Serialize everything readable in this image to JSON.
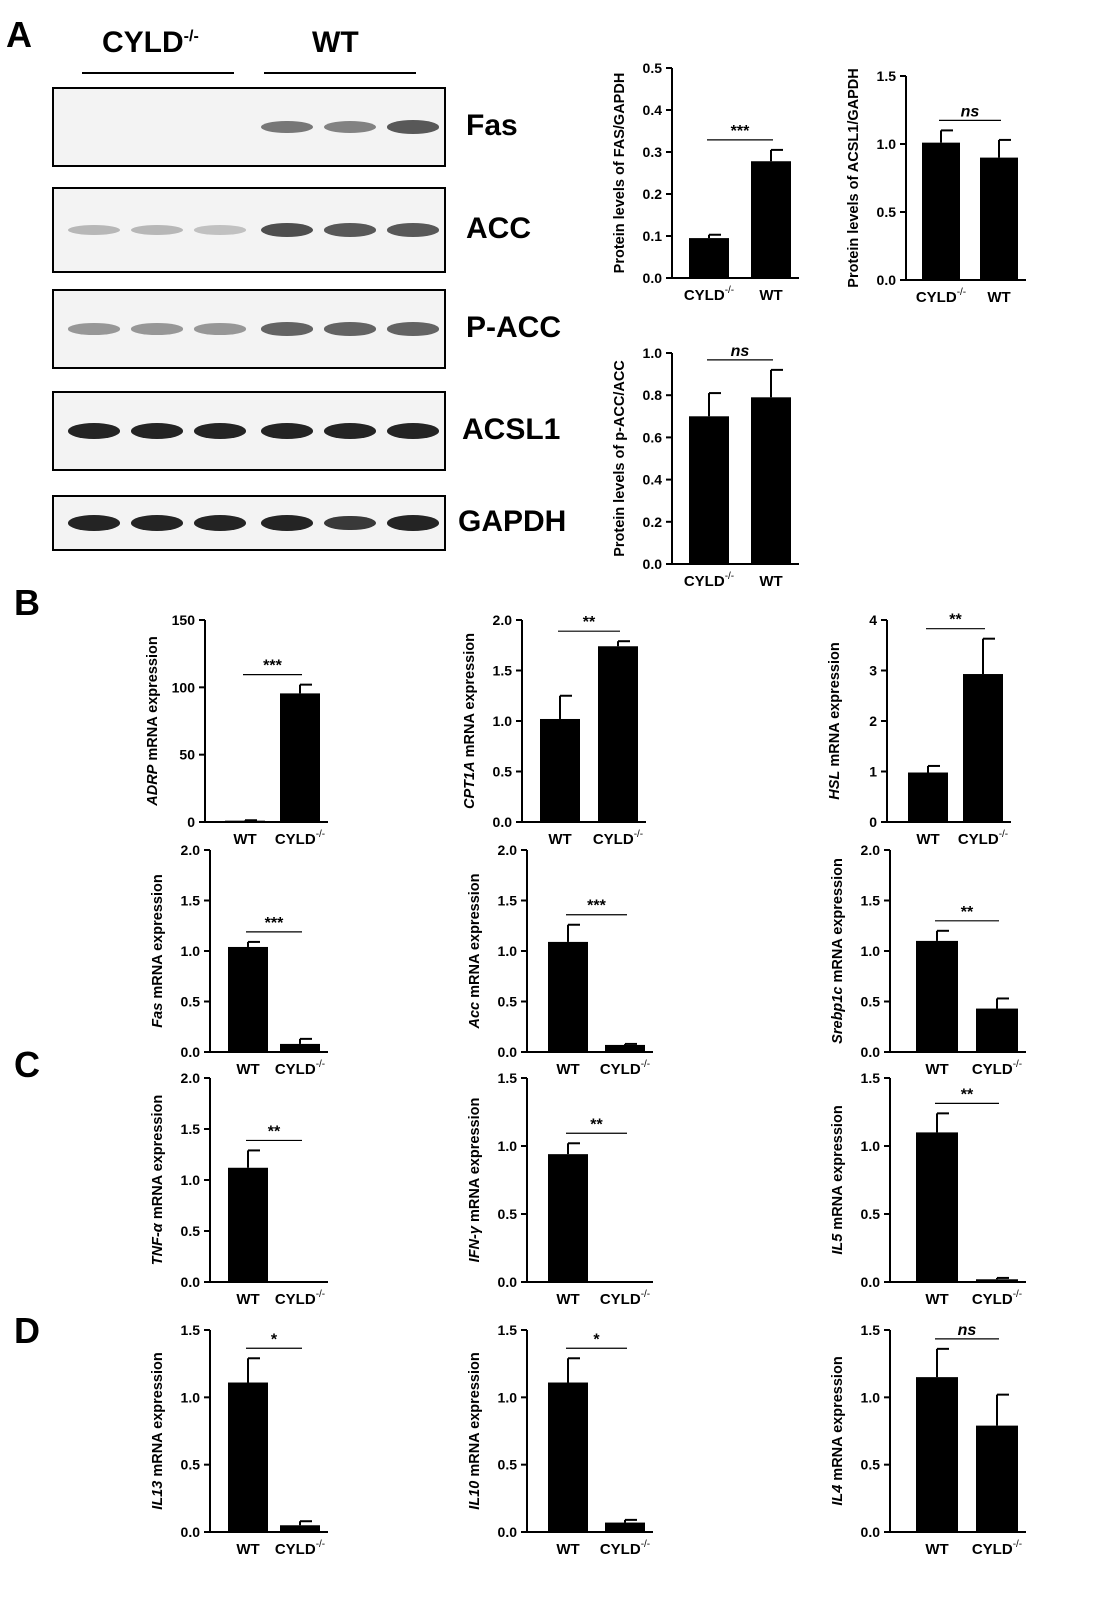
{
  "panels": {
    "a": "A",
    "b": "B",
    "c": "C",
    "d": "D"
  },
  "blot": {
    "header_left": "CYLD",
    "header_left_sup": "-/-",
    "header_right": "WT",
    "rows": [
      {
        "label": "Fas",
        "intensity": [
          0,
          0,
          0,
          0.55,
          0.5,
          0.7
        ]
      },
      {
        "label": "ACC",
        "intensity": [
          0.25,
          0.25,
          0.2,
          0.75,
          0.7,
          0.7
        ]
      },
      {
        "label": "P-ACC",
        "intensity": [
          0.4,
          0.4,
          0.4,
          0.65,
          0.65,
          0.65
        ]
      },
      {
        "label": "ACSL1",
        "intensity": [
          0.95,
          0.95,
          0.95,
          0.95,
          0.95,
          0.95
        ]
      },
      {
        "label": "GAPDH",
        "intensity": [
          0.95,
          0.95,
          0.95,
          0.95,
          0.85,
          0.95
        ]
      }
    ]
  },
  "chart_data": [
    {
      "type": "bar",
      "ylabel": "Protein levels of FAS/GAPDH",
      "ylabel_italic": "",
      "ylim": [
        0,
        0.5
      ],
      "yticks": [
        "0.0",
        "0.1",
        "0.2",
        "0.3",
        "0.4",
        "0.5"
      ],
      "categories": [
        "CYLD",
        "WT"
      ],
      "category_sup": [
        "-/-",
        ""
      ],
      "values": [
        0.095,
        0.278
      ],
      "errors": [
        0.008,
        0.027
      ],
      "significance": "***",
      "sig_italic": false
    },
    {
      "type": "bar",
      "ylabel": "Protein levels of ACSL1/GAPDH",
      "ylabel_italic": "",
      "ylim": [
        0,
        1.5
      ],
      "yticks": [
        "0.0",
        "0.5",
        "1.0",
        "1.5"
      ],
      "categories": [
        "CYLD",
        "WT"
      ],
      "category_sup": [
        "-/-",
        ""
      ],
      "values": [
        1.01,
        0.9
      ],
      "errors": [
        0.09,
        0.13
      ],
      "significance": "ns",
      "sig_italic": true
    },
    {
      "type": "bar",
      "ylabel": "Protein levels of p-ACC/ACC",
      "ylabel_italic": "",
      "ylim": [
        0,
        1.0
      ],
      "yticks": [
        "0.0",
        "0.2",
        "0.4",
        "0.6",
        "0.8",
        "1.0"
      ],
      "categories": [
        "CYLD",
        "WT"
      ],
      "category_sup": [
        "-/-",
        ""
      ],
      "values": [
        0.7,
        0.79
      ],
      "errors": [
        0.11,
        0.13
      ],
      "significance": "ns",
      "sig_italic": true
    },
    {
      "type": "bar",
      "ylabel": " mRNA expression",
      "ylabel_italic": "ADRP",
      "ylim": [
        0,
        150
      ],
      "yticks": [
        "0",
        "50",
        "100",
        "150"
      ],
      "categories": [
        "WT",
        "CYLD"
      ],
      "category_sup": [
        "",
        "-/-"
      ],
      "values": [
        1,
        95.5
      ],
      "errors": [
        0.3,
        6.5
      ],
      "significance": "***",
      "sig_italic": false
    },
    {
      "type": "bar",
      "ylabel": " mRNA expression",
      "ylabel_italic": "CPT1A",
      "ylim": [
        0,
        2.0
      ],
      "yticks": [
        "0.0",
        "0.5",
        "1.0",
        "1.5",
        "2.0"
      ],
      "categories": [
        "WT",
        "CYLD"
      ],
      "category_sup": [
        "",
        "-/-"
      ],
      "values": [
        1.02,
        1.74
      ],
      "errors": [
        0.23,
        0.05
      ],
      "significance": "**",
      "sig_italic": false
    },
    {
      "type": "bar",
      "ylabel": " mRNA expression",
      "ylabel_italic": "HSL",
      "ylim": [
        0,
        4
      ],
      "yticks": [
        "0",
        "1",
        "2",
        "3",
        "4"
      ],
      "categories": [
        "WT",
        "CYLD"
      ],
      "category_sup": [
        "",
        "-/-"
      ],
      "values": [
        0.98,
        2.93
      ],
      "errors": [
        0.13,
        0.7
      ],
      "significance": "**",
      "sig_italic": false
    },
    {
      "type": "bar",
      "ylabel": " mRNA expression",
      "ylabel_italic": "Fas",
      "ylim": [
        0,
        2.0
      ],
      "yticks": [
        "0.0",
        "0.5",
        "1.0",
        "1.5",
        "2.0"
      ],
      "categories": [
        "WT",
        "CYLD"
      ],
      "category_sup": [
        "",
        "-/-"
      ],
      "values": [
        1.04,
        0.08
      ],
      "errors": [
        0.05,
        0.05
      ],
      "significance": "***",
      "sig_italic": false
    },
    {
      "type": "bar",
      "ylabel": " mRNA expression",
      "ylabel_italic": "Acc",
      "ylim": [
        0,
        2.0
      ],
      "yticks": [
        "0.0",
        "0.5",
        "1.0",
        "1.5",
        "2.0"
      ],
      "categories": [
        "WT",
        "CYLD"
      ],
      "category_sup": [
        "",
        "-/-"
      ],
      "values": [
        1.09,
        0.07
      ],
      "errors": [
        0.17,
        0.01
      ],
      "significance": "***",
      "sig_italic": false
    },
    {
      "type": "bar",
      "ylabel": " mRNA expression",
      "ylabel_italic": "Srebp1c",
      "ylim": [
        0,
        2.0
      ],
      "yticks": [
        "0.0",
        "0.5",
        "1.0",
        "1.5",
        "2.0"
      ],
      "categories": [
        "WT",
        "CYLD"
      ],
      "category_sup": [
        "",
        "-/-"
      ],
      "values": [
        1.1,
        0.43
      ],
      "errors": [
        0.1,
        0.1
      ],
      "significance": "**",
      "sig_italic": false
    },
    {
      "type": "bar",
      "ylabel": " mRNA expression",
      "ylabel_italic": "TNF-α",
      "ylim": [
        0,
        2.0
      ],
      "yticks": [
        "0.0",
        "0.5",
        "1.0",
        "1.5",
        "2.0"
      ],
      "categories": [
        "WT",
        "CYLD"
      ],
      "category_sup": [
        "",
        "-/-"
      ],
      "values": [
        1.12,
        0.0
      ],
      "errors": [
        0.17,
        0.0
      ],
      "significance": "**",
      "sig_italic": false
    },
    {
      "type": "bar",
      "ylabel": " mRNA expression",
      "ylabel_italic": "IFN-γ",
      "ylim": [
        0,
        1.5
      ],
      "yticks": [
        "0.0",
        "0.5",
        "1.0",
        "1.5"
      ],
      "categories": [
        "WT",
        "CYLD"
      ],
      "category_sup": [
        "",
        "-/-"
      ],
      "values": [
        0.94,
        0.0
      ],
      "errors": [
        0.08,
        0.0
      ],
      "significance": "**",
      "sig_italic": false
    },
    {
      "type": "bar",
      "ylabel": " mRNA expression",
      "ylabel_italic": "IL5",
      "ylim": [
        0,
        1.5
      ],
      "yticks": [
        "0.0",
        "0.5",
        "1.0",
        "1.5"
      ],
      "categories": [
        "WT",
        "CYLD"
      ],
      "category_sup": [
        "",
        "-/-"
      ],
      "values": [
        1.1,
        0.02
      ],
      "errors": [
        0.14,
        0.01
      ],
      "significance": "**",
      "sig_italic": false
    },
    {
      "type": "bar",
      "ylabel": " mRNA expression",
      "ylabel_italic": "IL13",
      "ylim": [
        0,
        1.5
      ],
      "yticks": [
        "0.0",
        "0.5",
        "1.0",
        "1.5"
      ],
      "categories": [
        "WT",
        "CYLD"
      ],
      "category_sup": [
        "",
        "-/-"
      ],
      "values": [
        1.11,
        0.05
      ],
      "errors": [
        0.18,
        0.03
      ],
      "significance": "*",
      "sig_italic": false
    },
    {
      "type": "bar",
      "ylabel": " mRNA expression",
      "ylabel_italic": "IL10",
      "ylim": [
        0,
        1.5
      ],
      "yticks": [
        "0.0",
        "0.5",
        "1.0",
        "1.5"
      ],
      "categories": [
        "WT",
        "CYLD"
      ],
      "category_sup": [
        "",
        "-/-"
      ],
      "values": [
        1.11,
        0.07
      ],
      "errors": [
        0.18,
        0.02
      ],
      "significance": "*",
      "sig_italic": false
    },
    {
      "type": "bar",
      "ylabel": " mRNA expression",
      "ylabel_italic": "IL4",
      "ylim": [
        0,
        1.5
      ],
      "yticks": [
        "0.0",
        "0.5",
        "1.0",
        "1.5"
      ],
      "categories": [
        "WT",
        "CYLD"
      ],
      "category_sup": [
        "",
        "-/-"
      ],
      "values": [
        1.15,
        0.79
      ],
      "errors": [
        0.21,
        0.23
      ],
      "significance": "ns",
      "sig_italic": true
    }
  ]
}
